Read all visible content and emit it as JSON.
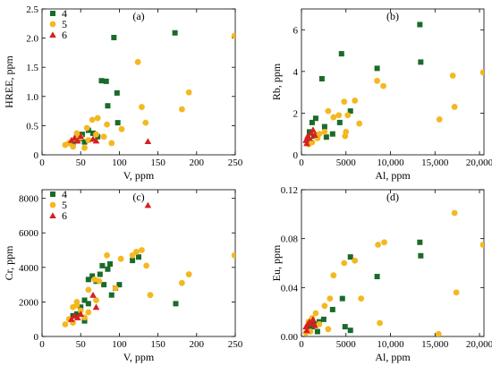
{
  "chart_data": [
    {
      "type": "scatter",
      "panel_label": "(a)",
      "xlabel": "V, ppm",
      "ylabel": "HREE, ppm",
      "xlim": [
        0,
        250
      ],
      "ylim": [
        0,
        2.5
      ],
      "xticks": [
        0,
        50,
        100,
        150,
        200,
        250
      ],
      "xtick_labels": [
        "0",
        "50",
        "100",
        "150",
        "200",
        "250"
      ],
      "yticks": [
        0,
        0.5,
        1.0,
        1.5,
        2.0,
        2.5
      ],
      "ytick_labels": [
        "0",
        "0.5",
        "1.0",
        "1.5",
        "2.0",
        "2.5"
      ],
      "legend": "top-left",
      "series": [
        {
          "name": "4",
          "marker": "square",
          "color": "#1a6b2a",
          "points": [
            [
              93,
              2.01
            ],
            [
              172,
              2.09
            ],
            [
              77,
              1.27
            ],
            [
              83,
              1.26
            ],
            [
              97,
              1.06
            ],
            [
              85,
              0.84
            ],
            [
              98,
              0.55
            ],
            [
              60,
              0.42
            ],
            [
              66,
              0.37
            ],
            [
              72,
              0.31
            ],
            [
              52,
              0.35
            ],
            [
              45,
              0.24
            ],
            [
              40,
              0.18
            ],
            [
              55,
              0.22
            ],
            [
              48,
              0.28
            ]
          ]
        },
        {
          "name": "5",
          "marker": "circle",
          "color": "#f4b820",
          "points": [
            [
              249,
              2.04
            ],
            [
              124,
              1.59
            ],
            [
              190,
              1.07
            ],
            [
              129,
              0.82
            ],
            [
              181,
              0.78
            ],
            [
              134,
              0.55
            ],
            [
              103,
              0.44
            ],
            [
              72,
              0.63
            ],
            [
              65,
              0.6
            ],
            [
              84,
              0.52
            ],
            [
              58,
              0.46
            ],
            [
              80,
              0.31
            ],
            [
              90,
              0.2
            ],
            [
              70,
              0.35
            ],
            [
              45,
              0.37
            ],
            [
              50,
              0.3
            ],
            [
              35,
              0.2
            ],
            [
              30,
              0.17
            ],
            [
              40,
              0.14
            ],
            [
              60,
              0.25
            ],
            [
              55,
              0.12
            ],
            [
              44,
              0.28
            ]
          ]
        },
        {
          "name": "6",
          "marker": "triangle",
          "color": "#d62020",
          "points": [
            [
              137,
              0.23
            ],
            [
              38,
              0.25
            ],
            [
              42,
              0.29
            ],
            [
              46,
              0.24
            ],
            [
              50,
              0.32
            ],
            [
              66,
              0.27
            ],
            [
              70,
              0.24
            ]
          ]
        }
      ]
    },
    {
      "type": "scatter",
      "panel_label": "(b)",
      "xlabel": "Al, ppm",
      "ylabel": "Rb, ppm",
      "xlim": [
        0,
        20500
      ],
      "ylim": [
        0,
        7
      ],
      "xticks": [
        0,
        5000,
        10000,
        15000,
        20000
      ],
      "xtick_labels": [
        "0",
        "5000",
        "10,000",
        "15,000",
        "20,000"
      ],
      "yticks": [
        0,
        2,
        4,
        6
      ],
      "ytick_labels": [
        "0",
        "2",
        "4",
        "6"
      ],
      "series": [
        {
          "name": "4",
          "marker": "square",
          "color": "#1a6b2a",
          "points": [
            [
              13300,
              6.25
            ],
            [
              4500,
              4.85
            ],
            [
              13400,
              4.45
            ],
            [
              8500,
              4.15
            ],
            [
              2300,
              3.65
            ],
            [
              5500,
              2.1
            ],
            [
              4300,
              1.55
            ],
            [
              2600,
              1.35
            ],
            [
              3500,
              1.0
            ],
            [
              1800,
              0.95
            ],
            [
              1400,
              0.9
            ],
            [
              900,
              1.1
            ],
            [
              700,
              0.7
            ],
            [
              1200,
              1.55
            ],
            [
              2800,
              0.85
            ],
            [
              1600,
              1.75
            ]
          ]
        },
        {
          "name": "5",
          "marker": "circle",
          "color": "#f4b820",
          "points": [
            [
              20400,
              3.95
            ],
            [
              8500,
              3.55
            ],
            [
              17000,
              3.8
            ],
            [
              9200,
              3.3
            ],
            [
              6000,
              2.6
            ],
            [
              4800,
              2.55
            ],
            [
              17200,
              2.3
            ],
            [
              15500,
              1.7
            ],
            [
              5200,
              1.9
            ],
            [
              6500,
              1.5
            ],
            [
              3600,
              1.8
            ],
            [
              4200,
              1.9
            ],
            [
              2600,
              1.1
            ],
            [
              1800,
              0.8
            ],
            [
              1200,
              0.6
            ],
            [
              2000,
              1.0
            ],
            [
              800,
              0.5
            ],
            [
              5000,
              1.1
            ],
            [
              3000,
              2.1
            ],
            [
              4900,
              0.9
            ]
          ]
        },
        {
          "name": "6",
          "marker": "triangle",
          "color": "#d62020",
          "points": [
            [
              500,
              0.7
            ],
            [
              700,
              0.9
            ],
            [
              900,
              0.8
            ],
            [
              1100,
              1.05
            ],
            [
              1300,
              1.2
            ],
            [
              600,
              0.55
            ],
            [
              1500,
              0.95
            ]
          ]
        }
      ]
    },
    {
      "type": "scatter",
      "panel_label": "(c)",
      "xlabel": "V, ppm",
      "ylabel": "Cr, ppm",
      "xlim": [
        0,
        250
      ],
      "ylim": [
        0,
        8500
      ],
      "xticks": [
        0,
        50,
        100,
        150,
        200,
        250
      ],
      "xtick_labels": [
        "0",
        "50",
        "100",
        "150",
        "200",
        "250"
      ],
      "yticks": [
        0,
        2000,
        4000,
        6000,
        8000
      ],
      "ytick_labels": [
        "0",
        "2000",
        "4000",
        "6000",
        "8000"
      ],
      "legend": "top-left",
      "series": [
        {
          "name": "4",
          "marker": "square",
          "color": "#1a6b2a",
          "points": [
            [
              117,
              4400
            ],
            [
              125,
              4600
            ],
            [
              88,
              4200
            ],
            [
              78,
              4100
            ],
            [
              85,
              3900
            ],
            [
              75,
              3600
            ],
            [
              65,
              3500
            ],
            [
              60,
              3300
            ],
            [
              70,
              3200
            ],
            [
              80,
              3000
            ],
            [
              95,
              2800
            ],
            [
              100,
              3000
            ],
            [
              90,
              2400
            ],
            [
              55,
              2100
            ],
            [
              60,
              1900
            ],
            [
              50,
              1700
            ],
            [
              45,
              1300
            ],
            [
              40,
              1200
            ],
            [
              55,
              900
            ],
            [
              173,
              1900
            ]
          ]
        },
        {
          "name": "5",
          "marker": "circle",
          "color": "#f4b820",
          "points": [
            [
              249,
              4700
            ],
            [
              129,
              5000
            ],
            [
              117,
              4700
            ],
            [
              122,
              4900
            ],
            [
              135,
              4100
            ],
            [
              190,
              3600
            ],
            [
              181,
              3100
            ],
            [
              84,
              4700
            ],
            [
              102,
              4500
            ],
            [
              74,
              3200
            ],
            [
              95,
              2800
            ],
            [
              68,
              3300
            ],
            [
              60,
              2700
            ],
            [
              45,
              2000
            ],
            [
              40,
              1700
            ],
            [
              50,
              1500
            ],
            [
              35,
              1000
            ],
            [
              30,
              700
            ],
            [
              40,
              800
            ],
            [
              55,
              1100
            ],
            [
              60,
              1400
            ],
            [
              70,
              2100
            ],
            [
              45,
              1800
            ],
            [
              140,
              2400
            ]
          ]
        },
        {
          "name": "6",
          "marker": "triangle",
          "color": "#d62020",
          "points": [
            [
              137,
              7600
            ],
            [
              38,
              1000
            ],
            [
              42,
              1200
            ],
            [
              46,
              1100
            ],
            [
              50,
              1300
            ],
            [
              66,
              2400
            ],
            [
              70,
              1700
            ]
          ]
        }
      ]
    },
    {
      "type": "scatter",
      "panel_label": "(d)",
      "xlabel": "Al, ppm",
      "ylabel": "Eu, ppm",
      "xlim": [
        0,
        20500
      ],
      "ylim": [
        0,
        0.12
      ],
      "xticks": [
        0,
        5000,
        10000,
        15000,
        20000
      ],
      "xtick_labels": [
        "0",
        "5000",
        "10,000",
        "15,000",
        "20,000"
      ],
      "yticks": [
        0,
        0.04,
        0.08,
        0.12
      ],
      "ytick_labels": [
        "0.00",
        "0.04",
        "0.08",
        "0.12"
      ],
      "series": [
        {
          "name": "4",
          "marker": "square",
          "color": "#1a6b2a",
          "points": [
            [
              13300,
              0.077
            ],
            [
              13400,
              0.066
            ],
            [
              5500,
              0.065
            ],
            [
              8500,
              0.049
            ],
            [
              4600,
              0.031
            ],
            [
              3500,
              0.022
            ],
            [
              2500,
              0.014
            ],
            [
              2000,
              0.012
            ],
            [
              1500,
              0.01
            ],
            [
              1200,
              0.008
            ],
            [
              5500,
              0.005
            ],
            [
              800,
              0.006
            ],
            [
              1800,
              0.004
            ],
            [
              4900,
              0.008
            ]
          ]
        },
        {
          "name": "5",
          "marker": "circle",
          "color": "#f4b820",
          "points": [
            [
              17200,
              0.101
            ],
            [
              20400,
              0.075
            ],
            [
              9300,
              0.077
            ],
            [
              8600,
              0.075
            ],
            [
              6000,
              0.062
            ],
            [
              4800,
              0.06
            ],
            [
              3600,
              0.05
            ],
            [
              17400,
              0.036
            ],
            [
              6700,
              0.031
            ],
            [
              3200,
              0.031
            ],
            [
              2600,
              0.025
            ],
            [
              8800,
              0.011
            ],
            [
              15400,
              0.002
            ],
            [
              1600,
              0.019
            ],
            [
              1200,
              0.015
            ],
            [
              2000,
              0.01
            ],
            [
              800,
              0.012
            ],
            [
              500,
              0.003
            ],
            [
              1000,
              0.004
            ],
            [
              3000,
              0.006
            ]
          ]
        },
        {
          "name": "6",
          "marker": "triangle",
          "color": "#d62020",
          "points": [
            [
              500,
              0.008
            ],
            [
              700,
              0.01
            ],
            [
              900,
              0.012
            ],
            [
              1100,
              0.011
            ],
            [
              1300,
              0.014
            ],
            [
              600,
              0.005
            ],
            [
              1500,
              0.009
            ]
          ]
        }
      ]
    }
  ]
}
